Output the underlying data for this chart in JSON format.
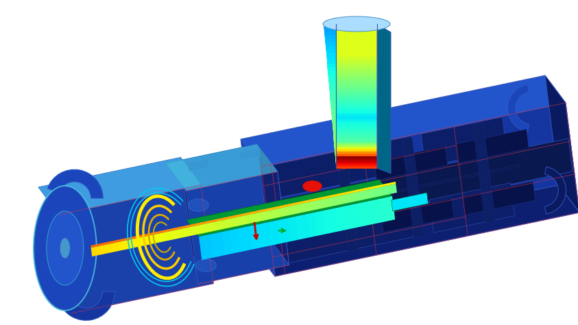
{
  "background_color": "#ffffff",
  "colormap": "jet",
  "fig_width": 8.43,
  "fig_height": 4.74,
  "dpi": 100,
  "body_blue": "#1535a0",
  "body_blue2": "#1a45bb",
  "body_blue_light": "#2255cc",
  "body_blue_dark": "#0a1a60",
  "body_blue_deep": "#0d1f70",
  "cyan_edge": "#00aadd",
  "edge_color": "#3355bb",
  "edge_dark": "#1a2a88"
}
